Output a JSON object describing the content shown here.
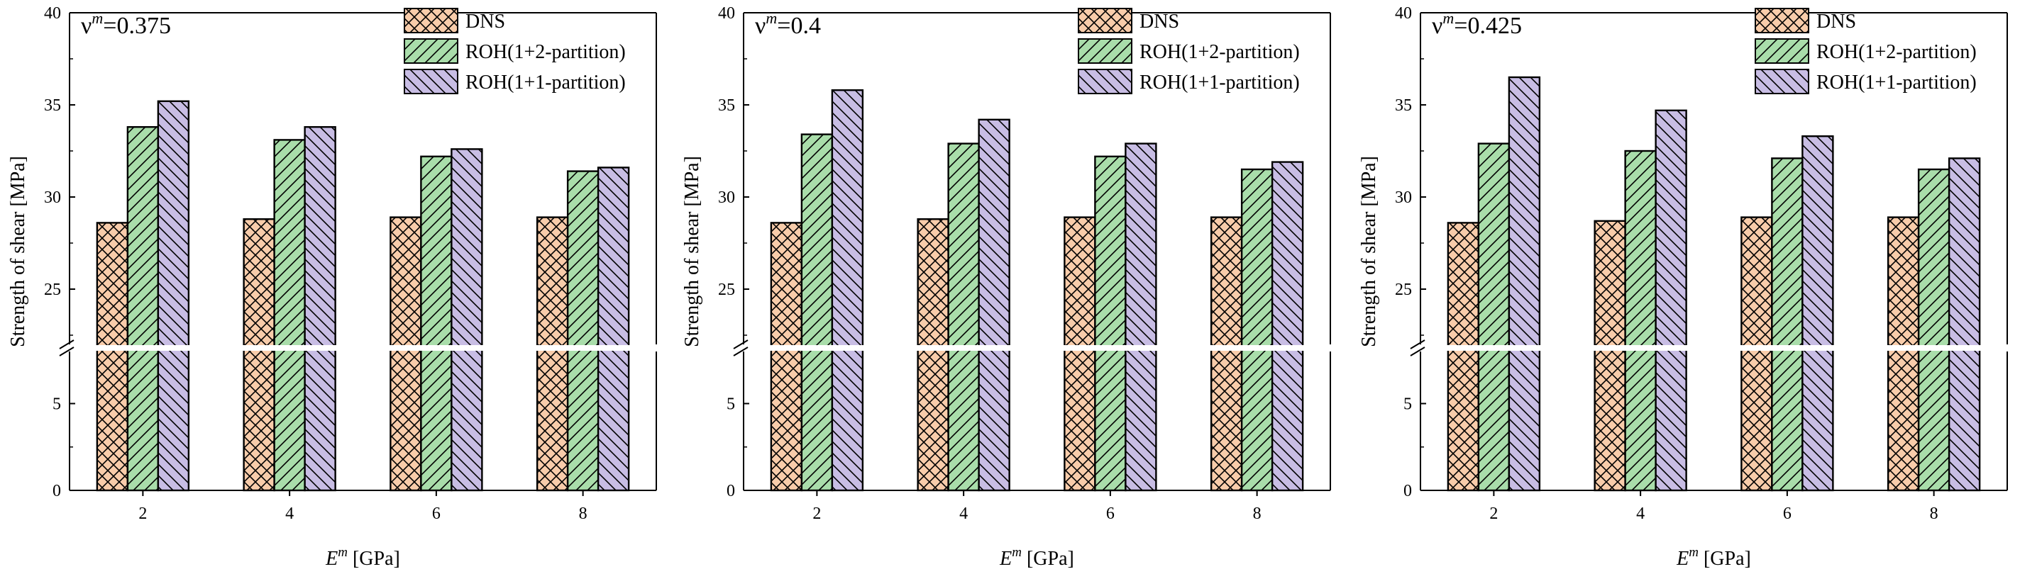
{
  "chart_data": [
    {
      "type": "bar",
      "title": "ν^m=0.375",
      "title_symbol": "ν",
      "title_sup": "m",
      "title_value": "=0.375",
      "categories": [
        "2",
        "4",
        "6",
        "8"
      ],
      "series": [
        {
          "name": "DNS",
          "values": [
            28.6,
            28.8,
            28.9,
            28.9
          ]
        },
        {
          "name": "ROH(1+2-partition)",
          "values": [
            33.8,
            33.1,
            32.2,
            31.4
          ]
        },
        {
          "name": "ROH(1+1-partition)",
          "values": [
            35.2,
            33.8,
            32.6,
            31.6
          ]
        }
      ],
      "xlabel_symbol": "E",
      "xlabel_sup": "m",
      "xlabel_unit": " [GPa]",
      "ylabel": "Strength of shear [MPa]",
      "ylim_lower": [
        0,
        8
      ],
      "ylim_upper": [
        22,
        40
      ],
      "yticks_lower": [
        "0",
        "5"
      ],
      "yticks_upper": [
        "25",
        "30",
        "35",
        "40"
      ]
    },
    {
      "type": "bar",
      "title": "ν^m=0.4",
      "title_symbol": "ν",
      "title_sup": "m",
      "title_value": "=0.4",
      "categories": [
        "2",
        "4",
        "6",
        "8"
      ],
      "series": [
        {
          "name": "DNS",
          "values": [
            28.6,
            28.8,
            28.9,
            28.9
          ]
        },
        {
          "name": "ROH(1+2-partition)",
          "values": [
            33.4,
            32.9,
            32.2,
            31.5
          ]
        },
        {
          "name": "ROH(1+1-partition)",
          "values": [
            35.8,
            34.2,
            32.9,
            31.9
          ]
        }
      ],
      "xlabel_symbol": "E",
      "xlabel_sup": "m",
      "xlabel_unit": " [GPa]",
      "ylabel": "Strength of shear [MPa]",
      "ylim_lower": [
        0,
        8
      ],
      "ylim_upper": [
        22,
        40
      ],
      "yticks_lower": [
        "0",
        "5"
      ],
      "yticks_upper": [
        "25",
        "30",
        "35",
        "40"
      ]
    },
    {
      "type": "bar",
      "title": "ν^m=0.425",
      "title_symbol": "ν",
      "title_sup": "m",
      "title_value": "=0.425",
      "categories": [
        "2",
        "4",
        "6",
        "8"
      ],
      "series": [
        {
          "name": "DNS",
          "values": [
            28.6,
            28.7,
            28.9,
            28.9
          ]
        },
        {
          "name": "ROH(1+2-partition)",
          "values": [
            32.9,
            32.5,
            32.1,
            31.5
          ]
        },
        {
          "name": "ROH(1+1-partition)",
          "values": [
            36.5,
            34.7,
            33.3,
            32.1
          ]
        }
      ],
      "xlabel_symbol": "E",
      "xlabel_sup": "m",
      "xlabel_unit": " [GPa]",
      "ylabel": "Strength of shear [MPa]",
      "ylim_lower": [
        0,
        8
      ],
      "ylim_upper": [
        22,
        40
      ],
      "yticks_lower": [
        "0",
        "5"
      ],
      "yticks_upper": [
        "25",
        "30",
        "35",
        "40"
      ]
    }
  ],
  "colors": {
    "dns": "#f8ccaa",
    "roh12": "#a9ddaa",
    "roh11": "#c8bde4",
    "stroke": "#000000"
  }
}
